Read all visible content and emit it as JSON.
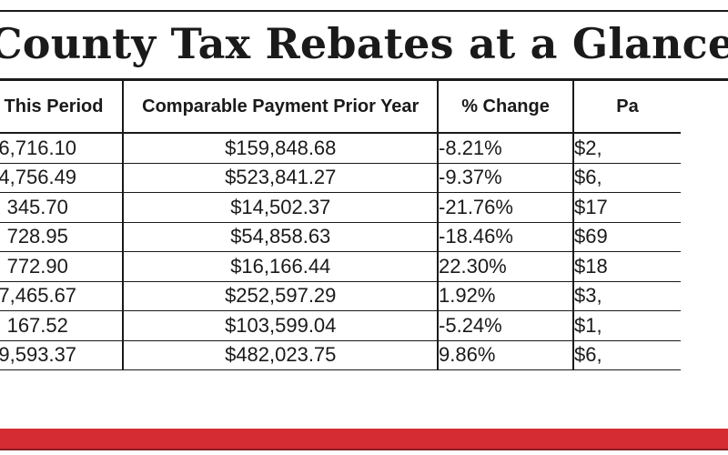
{
  "title": "County Tax Rebates at a Glance - Decem",
  "columns": [
    "ent This Period",
    "Comparable Payment Prior Year",
    "% Change",
    "Pa"
  ],
  "rows": [
    [
      "6,716.10",
      "$159,848.68",
      "-8.21%",
      "$2,"
    ],
    [
      "4,756.49",
      "$523,841.27",
      "-9.37%",
      "$6,"
    ],
    [
      "345.70",
      "$14,502.37",
      "-21.76%",
      "$17"
    ],
    [
      "728.95",
      "$54,858.63",
      "-18.46%",
      "$69"
    ],
    [
      "772.90",
      "$16,166.44",
      "22.30%",
      "$18"
    ],
    [
      "7,465.67",
      "$252,597.29",
      "1.92%",
      "$3,"
    ],
    [
      "167.52",
      "$103,599.04",
      "-5.24%",
      "$1,"
    ],
    [
      "9,593.37",
      "$482,023.75",
      "9.86%",
      "$6,"
    ]
  ],
  "colors": {
    "text": "#1a1a1a",
    "accent_band": "#d52b33"
  }
}
